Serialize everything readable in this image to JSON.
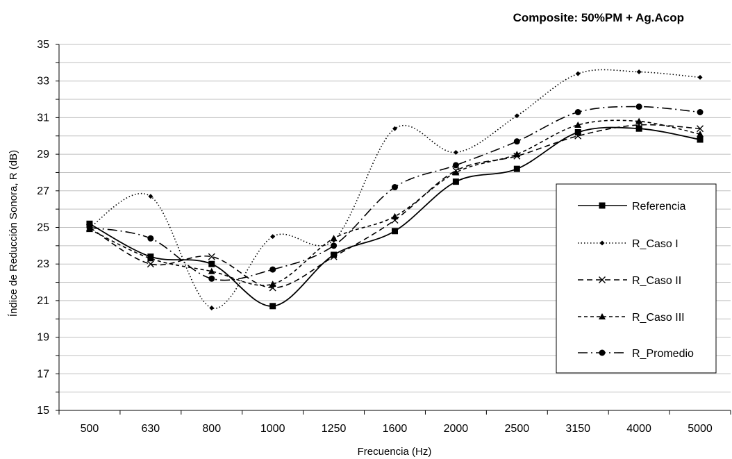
{
  "chart_data": {
    "type": "line",
    "title": "Composite: 50%PM + Ag.Acop",
    "xlabel": "Frecuencia (Hz)",
    "ylabel": "Índice de Reducción Sonora, R (dB)",
    "categories": [
      "500",
      "630",
      "800",
      "1000",
      "1250",
      "1600",
      "2000",
      "2500",
      "3150",
      "4000",
      "5000"
    ],
    "ylim": [
      15,
      35
    ],
    "y_ticks": [
      "15",
      "17",
      "19",
      "21",
      "23",
      "25",
      "27",
      "29",
      "31",
      "33",
      "35"
    ],
    "grid": "horizontal",
    "legend_position": "right",
    "series": [
      {
        "name": "Referencia",
        "values": [
          25.2,
          23.4,
          23.0,
          20.7,
          23.5,
          24.8,
          27.5,
          28.2,
          30.2,
          30.4,
          29.8
        ],
        "marker": "square",
        "dash": "solid"
      },
      {
        "name": "R_Caso I",
        "values": [
          25.0,
          26.7,
          20.6,
          24.5,
          24.3,
          30.4,
          29.1,
          31.1,
          33.4,
          33.5,
          33.2
        ],
        "marker": "diamond",
        "dash": "dotted"
      },
      {
        "name": "R_Caso II",
        "values": [
          25.0,
          23.0,
          23.4,
          21.7,
          23.4,
          25.4,
          28.1,
          28.9,
          30.0,
          30.6,
          30.4
        ],
        "marker": "x",
        "dash": "dashed"
      },
      {
        "name": "R_Caso III",
        "values": [
          24.9,
          23.3,
          22.6,
          21.9,
          24.4,
          25.6,
          28.0,
          29.0,
          30.6,
          30.8,
          30.1
        ],
        "marker": "triangle",
        "dash": "short-dash"
      },
      {
        "name": "R_Promedio",
        "values": [
          25.0,
          24.4,
          22.2,
          22.7,
          24.0,
          27.2,
          28.4,
          29.7,
          31.3,
          31.6,
          31.3
        ],
        "marker": "circle",
        "dash": "long-dash-dot"
      }
    ]
  }
}
